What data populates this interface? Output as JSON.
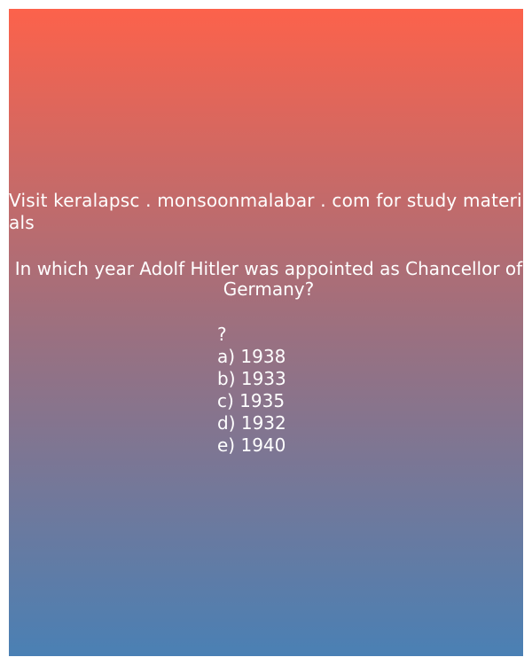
{
  "promo_text": "Visit keralapsc . monsoonmalabar . com for study materials",
  "question": "In which year Adolf Hitler was appointed as Chancellor of Germany?",
  "options_lead": "?",
  "options": [
    "a) 1938",
    "b) 1933",
    "c) 1935",
    "d) 1932",
    "e) 1940"
  ],
  "colors": {
    "gradient_top": "#fc624b",
    "gradient_bottom": "#4a80b4",
    "text": "#ffffff"
  }
}
